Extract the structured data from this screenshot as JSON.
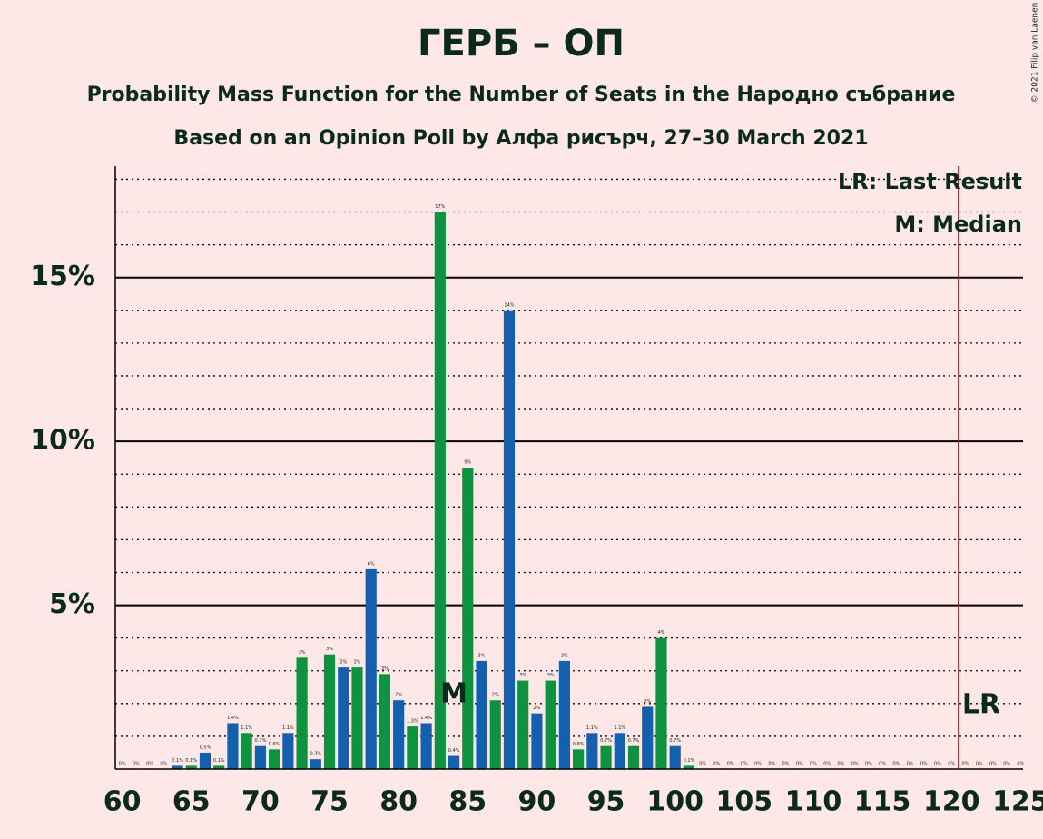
{
  "chart_data": {
    "type": "bar",
    "title": "ГЕРБ – ОП",
    "subtitle": "Probability Mass Function for the Number of Seats in the Народно събрание",
    "subtitle2": "Based on an Opinion Poll by Алфа рисърч, 27–30 March 2021",
    "copyright": "© 2021 Filip van Laenen",
    "x": [
      60,
      61,
      62,
      63,
      64,
      65,
      66,
      67,
      68,
      69,
      70,
      71,
      72,
      73,
      74,
      75,
      76,
      77,
      78,
      79,
      80,
      81,
      82,
      83,
      84,
      85,
      86,
      87,
      88,
      89,
      90,
      91,
      92,
      93,
      94,
      95,
      96,
      97,
      98,
      99,
      100,
      101,
      102,
      103,
      104,
      105,
      106,
      107,
      108,
      109,
      110,
      111,
      112,
      113,
      114,
      115,
      116,
      117,
      118,
      119,
      120,
      121,
      122,
      123,
      124,
      125
    ],
    "values": [
      0,
      0,
      0,
      0,
      0.1,
      0.1,
      0.5,
      0.1,
      1.4,
      1.1,
      0.7,
      0.6,
      1.1,
      3.4,
      0.3,
      3.5,
      3.1,
      3.1,
      6.1,
      2.9,
      2.1,
      1.3,
      1.4,
      17,
      0.4,
      9.2,
      3.3,
      2.1,
      14,
      2.7,
      1.7,
      2.7,
      3.3,
      0.6,
      1.1,
      0.7,
      1.1,
      0.7,
      1.9,
      4.0,
      0.7,
      0.1,
      0,
      0,
      0,
      0,
      0,
      0,
      0,
      0,
      0,
      0,
      0,
      0,
      0,
      0,
      0,
      0,
      0,
      0,
      0,
      0,
      0,
      0,
      0,
      0
    ],
    "value_labels": [
      "0%",
      "0%",
      "0%",
      "0%",
      "0.1%",
      "0.1%",
      "0.5%",
      "0.1%",
      "1.4%",
      "1.1%",
      "0.7%",
      "0.6%",
      "1.1%",
      "3%",
      "0.3%",
      "3%",
      "3%",
      "3%",
      "6%",
      "3%",
      "2%",
      "1.3%",
      "1.4%",
      "17%",
      "0.4%",
      "9%",
      "3%",
      "2%",
      "14%",
      "3%",
      "2%",
      "3%",
      "3%",
      "0.6%",
      "1.1%",
      "0.7%",
      "1.1%",
      "0.7%",
      "2%",
      "4%",
      "0.7%",
      "0.1%",
      "0%",
      "0%",
      "0%",
      "0%",
      "0%",
      "0%",
      "0%",
      "0%",
      "0%",
      "0%",
      "0%",
      "0%",
      "0%",
      "0%",
      "0%",
      "0%",
      "0%",
      "0%",
      "0%",
      "0%",
      "0%",
      "0%",
      "0%",
      "0%"
    ],
    "colors": [
      "#1560ae",
      "#0e9240",
      "#1560ae",
      "#0e9240",
      "#1560ae",
      "#0e9240",
      "#1560ae",
      "#0e9240",
      "#1560ae",
      "#0e9240",
      "#1560ae",
      "#0e9240",
      "#1560ae",
      "#0e9240",
      "#1560ae",
      "#0e9240",
      "#1560ae",
      "#0e9240",
      "#1560ae",
      "#0e9240",
      "#1560ae",
      "#0e9240",
      "#1560ae",
      "#0e9240",
      "#1560ae",
      "#0e9240",
      "#1560ae",
      "#0e9240",
      "#1560ae",
      "#0e9240",
      "#1560ae",
      "#0e9240",
      "#1560ae",
      "#0e9240",
      "#1560ae",
      "#0e9240",
      "#1560ae",
      "#0e9240",
      "#1560ae",
      "#0e9240",
      "#1560ae",
      "#0e9240",
      "#1560ae",
      "#0e9240",
      "#1560ae",
      "#0e9240",
      "#1560ae",
      "#0e9240",
      "#1560ae",
      "#0e9240",
      "#1560ae",
      "#0e9240",
      "#1560ae",
      "#0e9240",
      "#1560ae",
      "#0e9240",
      "#1560ae",
      "#0e9240",
      "#1560ae",
      "#0e9240",
      "#1560ae",
      "#0e9240",
      "#1560ae",
      "#0e9240",
      "#1560ae",
      "#0e9240"
    ],
    "xlim": [
      59.5,
      125.5
    ],
    "xticks": [
      60,
      65,
      70,
      75,
      80,
      85,
      90,
      95,
      100,
      105,
      110,
      115,
      120,
      125
    ],
    "ylim": [
      0,
      18.4
    ],
    "yticks": [
      {
        "value": 5,
        "label": "5%"
      },
      {
        "value": 10,
        "label": "10%"
      },
      {
        "value": 15,
        "label": "15%"
      }
    ],
    "minor_yticks": [
      1,
      2,
      3,
      4,
      6,
      7,
      8,
      9,
      11,
      12,
      13,
      14,
      16,
      17,
      18
    ],
    "median": 84,
    "median_label": "M",
    "last_result": 121,
    "last_result_label": "LR",
    "legend": [
      "LR: Last Result",
      "M: Median"
    ]
  }
}
